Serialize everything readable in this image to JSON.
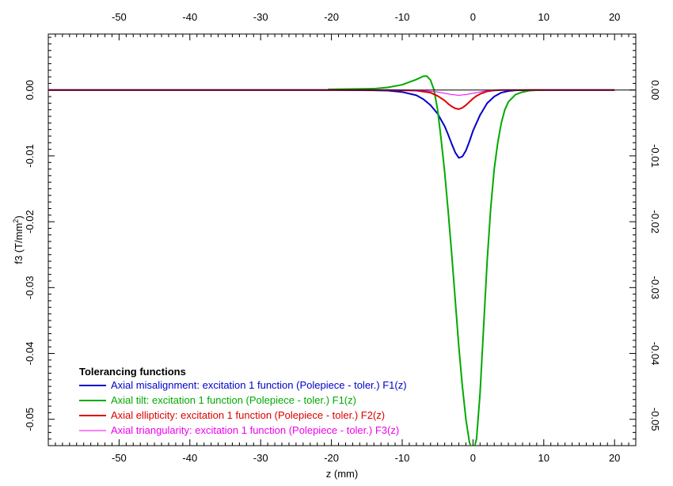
{
  "chart_data": {
    "type": "line",
    "title": "",
    "xlabel": "z (mm)",
    "ylabel": "f3 (T/mm",
    "ylabel_superscript": "2",
    "ylabel_close": ")",
    "xlim": [
      -60,
      23
    ],
    "ylim": [
      -0.054,
      0.0085
    ],
    "x_ticks": [
      -50,
      -40,
      -30,
      -20,
      -10,
      0,
      10,
      20
    ],
    "y_ticks": [
      0.0,
      -0.01,
      -0.02,
      -0.03,
      -0.04,
      -0.05
    ],
    "y_tick_labels": [
      "0.00",
      "-0.01",
      "-0.02",
      "-0.03",
      "-0.04",
      "-0.05"
    ],
    "legend": {
      "title": "Tolerancing functions",
      "position": "bottom-left"
    },
    "series": [
      {
        "name": "Axial misalignment: excitation  1 function (Polepiece - toler.) F1(z)",
        "color": "#0000cc",
        "width": 2,
        "x": [
          -60,
          -20,
          -14,
          -12,
          -10,
          -8,
          -7,
          -6,
          -5,
          -4,
          -3.5,
          -3,
          -2.5,
          -2,
          -1.5,
          -1,
          -0.5,
          0,
          1,
          2,
          3,
          4,
          5,
          6,
          8,
          20
        ],
        "y": [
          0,
          0,
          -5e-05,
          -0.0001,
          -0.0003,
          -0.0008,
          -0.0014,
          -0.0023,
          -0.0036,
          -0.0055,
          -0.0068,
          -0.0082,
          -0.0095,
          -0.0103,
          -0.0101,
          -0.0092,
          -0.0078,
          -0.0062,
          -0.0038,
          -0.002,
          -0.001,
          -0.0004,
          -0.00015,
          -5e-05,
          0,
          0
        ]
      },
      {
        "name": "Axial tilt: excitation  1 function (Polepiece - toler.) F1(z)",
        "color": "#00aa00",
        "width": 2,
        "x": [
          -20.5,
          -14,
          -12,
          -10,
          -9,
          -8,
          -7,
          -6.5,
          -6,
          -5.5,
          -5,
          -4.5,
          -4,
          -3.5,
          -3,
          -2.5,
          -2,
          -1.5,
          -1,
          -0.5,
          0,
          0.5,
          1,
          1.5,
          2,
          2.5,
          3,
          3.5,
          4,
          4.5,
          5,
          6,
          7,
          8,
          9,
          10
        ],
        "y": [
          0.0001,
          0.0002,
          0.0004,
          0.0008,
          0.0012,
          0.0016,
          0.0021,
          0.0021,
          0.0015,
          0.0,
          -0.003,
          -0.0075,
          -0.0125,
          -0.0185,
          -0.025,
          -0.032,
          -0.039,
          -0.045,
          -0.05,
          -0.0535,
          -0.055,
          -0.053,
          -0.046,
          -0.036,
          -0.026,
          -0.018,
          -0.012,
          -0.008,
          -0.005,
          -0.003,
          -0.0018,
          -0.0007,
          -0.0003,
          -0.0001,
          -3e-05,
          0
        ]
      },
      {
        "name": "Axial ellipticity: excitation  1 function (Polepiece - toler.) F2(z)",
        "color": "#dd0000",
        "width": 2,
        "x": [
          -60,
          -12,
          -8,
          -6,
          -5,
          -4,
          -3.5,
          -3,
          -2.5,
          -2,
          -1.5,
          -1,
          -0.5,
          0,
          0.5,
          1,
          2,
          3,
          4,
          6,
          20
        ],
        "y": [
          0,
          0,
          -0.0001,
          -0.0004,
          -0.0009,
          -0.0016,
          -0.0021,
          -0.0025,
          -0.0028,
          -0.0029,
          -0.0027,
          -0.0023,
          -0.0018,
          -0.0013,
          -0.0009,
          -0.0006,
          -0.0002,
          -6e-05,
          0,
          0,
          0
        ]
      },
      {
        "name": "Axial triangularity: excitation  1 function (Polepiece - toler.) F3(z)",
        "color": "#ee00ee",
        "width": 1,
        "x": [
          -60,
          -10,
          -7,
          -5,
          -4,
          -3,
          -2,
          -1,
          0,
          1,
          2,
          4,
          20
        ],
        "y": [
          0,
          0,
          -0.0001,
          -0.0003,
          -0.0005,
          -0.0007,
          -0.0008,
          -0.0007,
          -0.0005,
          -0.0003,
          -0.0001,
          0,
          0
        ]
      }
    ]
  }
}
